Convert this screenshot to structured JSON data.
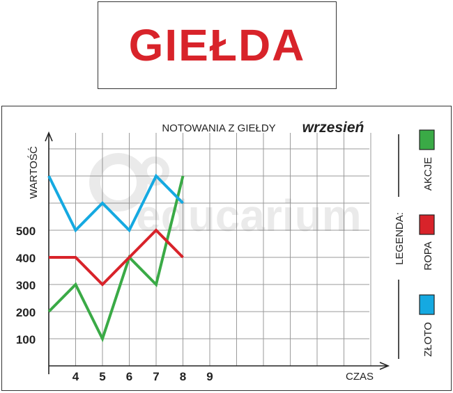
{
  "header": {
    "title": "GIEŁDA"
  },
  "chart_data": {
    "type": "line",
    "title": "NOTOWANIA Z GIEŁDY",
    "subtitle": "wrzesień",
    "ylabel": "WARTOŚĆ",
    "xlabel": "CZAS",
    "x": [
      3,
      4,
      5,
      6,
      7,
      8
    ],
    "x_ticks": [
      4,
      5,
      6,
      7,
      8,
      9
    ],
    "y_ticks": [
      100,
      200,
      300,
      400,
      500
    ],
    "xlim": [
      3,
      15
    ],
    "ylim": [
      0,
      800
    ],
    "grid": true,
    "series": [
      {
        "name": "AKCJE",
        "color": "#3aaa46",
        "values": [
          200,
          300,
          100,
          400,
          300,
          700
        ]
      },
      {
        "name": "ROPA",
        "color": "#d8232a",
        "values": [
          400,
          400,
          300,
          400,
          500,
          400
        ]
      },
      {
        "name": "ZŁOTO",
        "color": "#15a9e1",
        "values": [
          700,
          500,
          600,
          500,
          700,
          600
        ]
      }
    ],
    "legend": {
      "title": "LEGENDA:",
      "position": "right"
    }
  },
  "watermark": "educarium"
}
